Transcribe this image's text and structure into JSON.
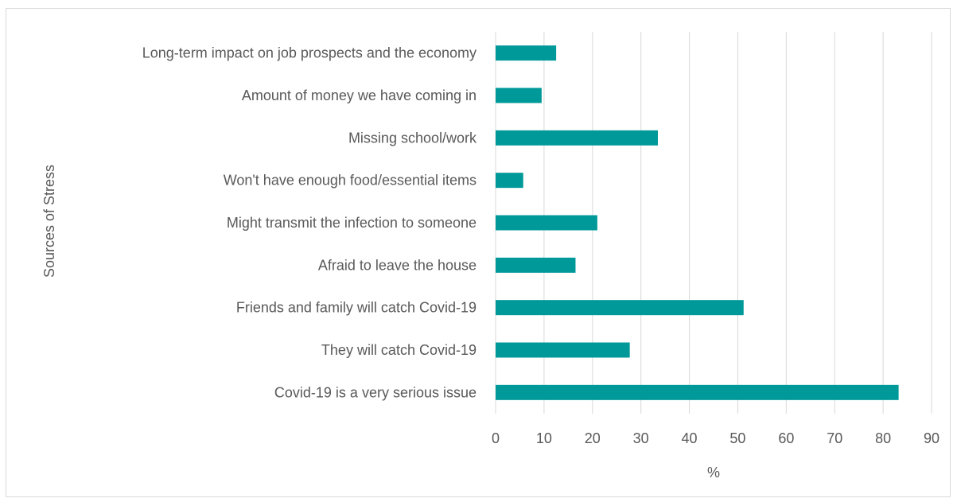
{
  "chart_data": {
    "type": "bar",
    "orientation": "horizontal",
    "categories": [
      "Long-term impact on job prospects and the economy",
      "Amount of money we have coming in",
      "Missing school/work",
      "Won't have enough food/essential items",
      "Might transmit the infection to someone",
      "Afraid to leave the house",
      "Friends and family will catch Covid-19",
      "They will catch Covid-19",
      "Covid-19 is a very serious issue"
    ],
    "values": [
      12.5,
      9.5,
      33.5,
      5.7,
      21,
      16.5,
      51.2,
      27.7,
      83.2
    ],
    "xlabel": "%",
    "ylabel": "Sources of Stress",
    "xlim": [
      0,
      90
    ],
    "xticks": [
      "0",
      "10",
      "20",
      "30",
      "40",
      "50",
      "60",
      "70",
      "80",
      "90"
    ],
    "grid": "vertical",
    "legend": "none",
    "bar_color": "#009999",
    "grid_color": "#d9d9d9"
  }
}
